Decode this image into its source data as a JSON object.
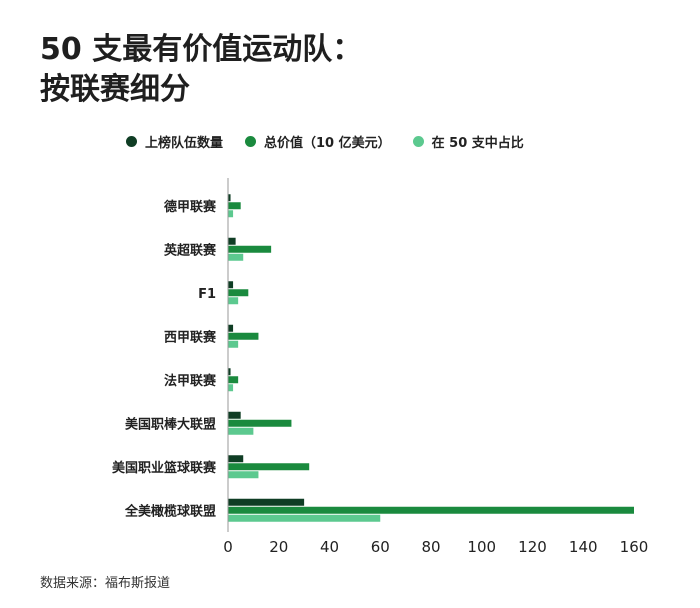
{
  "chart_data": {
    "type": "bar",
    "orientation": "horizontal",
    "title_lines": [
      "50 支最有价值运动队：",
      "按联赛细分"
    ],
    "categories": [
      "德甲联赛",
      "英超联赛",
      "F1",
      "西甲联赛",
      "法甲联赛",
      "美国职棒大联盟",
      "美国职业篮球联赛",
      "全美橄榄球联盟"
    ],
    "series": [
      {
        "name": "上榜队伍数量",
        "color": "#0f3d24",
        "values": [
          1,
          3,
          2,
          2,
          1,
          5,
          6,
          30
        ]
      },
      {
        "name": "总价值（10 亿美元）",
        "color": "#1a8a3e",
        "values": [
          5,
          17,
          8,
          12,
          4,
          25,
          32,
          160
        ]
      },
      {
        "name": "在 50 支中占比",
        "color": "#5cc98f",
        "values": [
          2,
          6,
          4,
          4,
          2,
          10,
          12,
          60
        ]
      }
    ],
    "xlim": [
      0,
      160
    ],
    "xticks": [
      0,
      20,
      40,
      60,
      80,
      100,
      120,
      140,
      160
    ],
    "legend_position": "top",
    "grid": false
  },
  "source_text": "数据来源：福布斯报道"
}
